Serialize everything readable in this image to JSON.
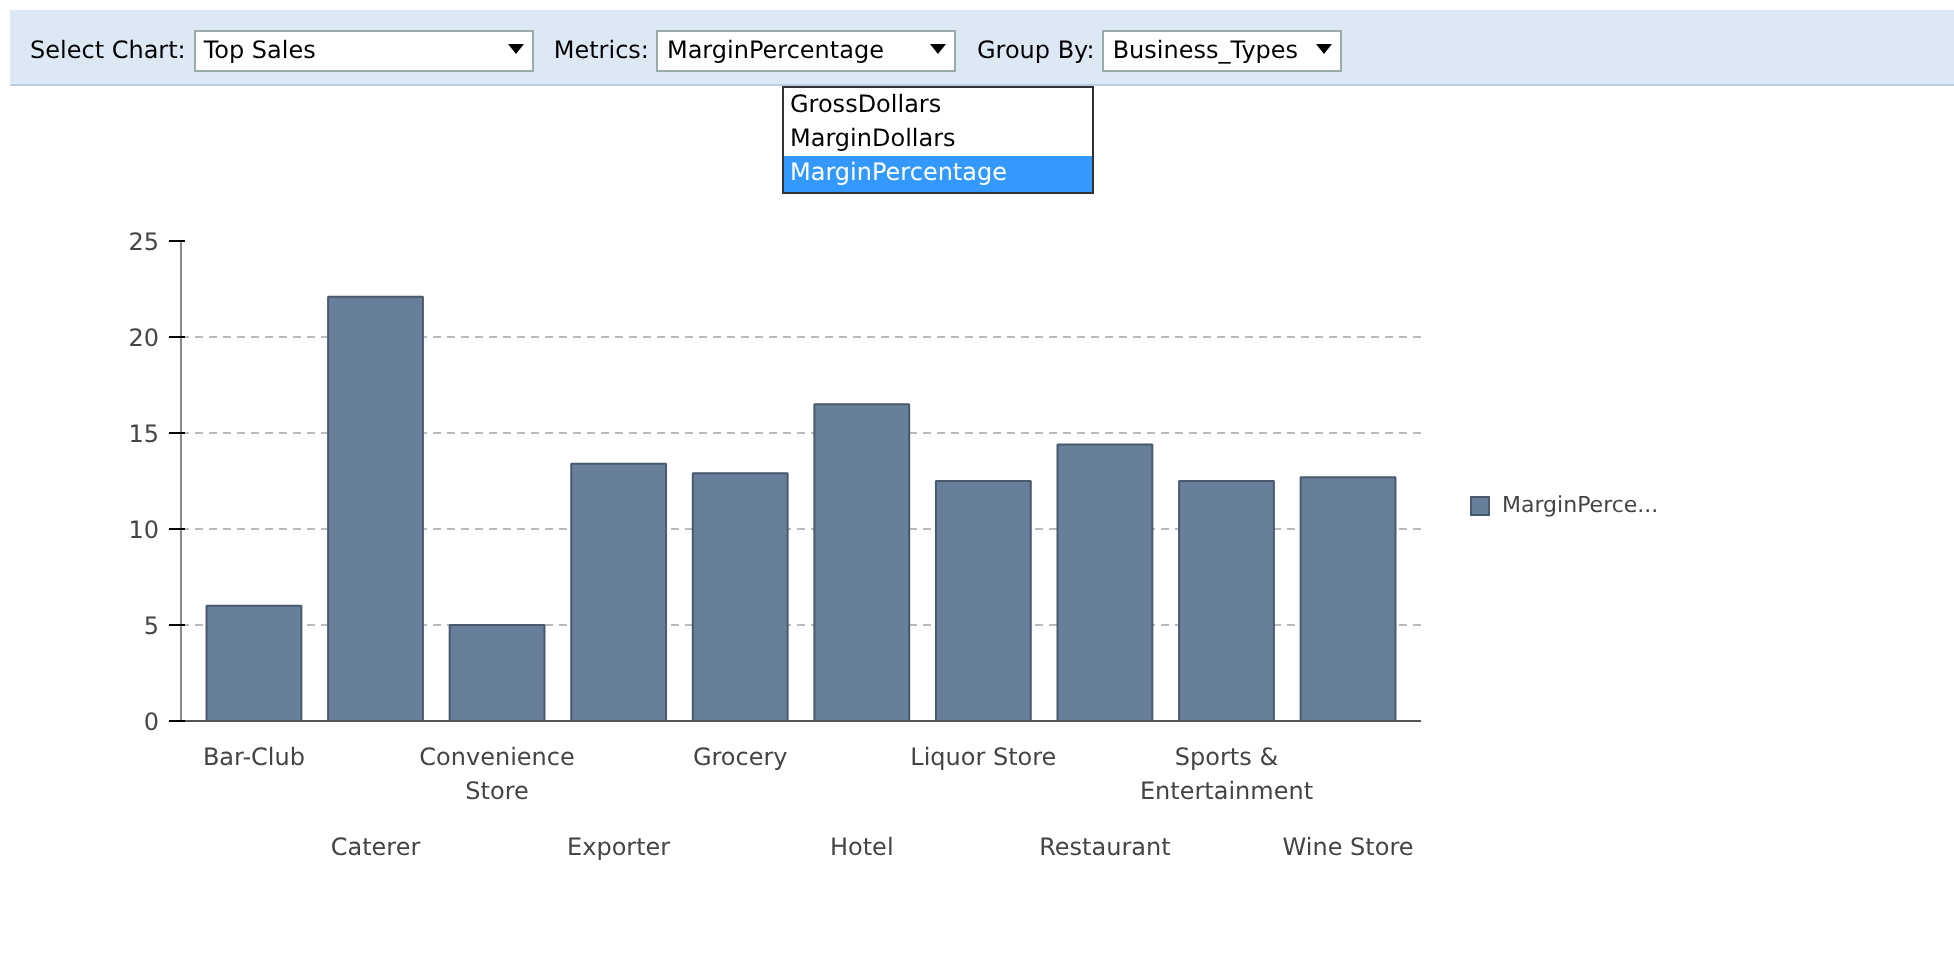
{
  "chart_data": {
    "type": "bar",
    "categories": [
      "Bar-Club",
      "Caterer",
      "Convenience Store",
      "Exporter",
      "Grocery",
      "Hotel",
      "Liquor Store",
      "Restaurant",
      "Sports & Entertainment",
      "Wine Store"
    ],
    "series": [
      {
        "name": "MarginPerce...",
        "color": "#687f9b",
        "values": [
          6.0,
          22.1,
          5.0,
          13.4,
          12.9,
          16.5,
          12.5,
          14.4,
          12.5,
          12.7
        ]
      }
    ],
    "ylim": [
      0,
      25
    ],
    "yticks": [
      0,
      5,
      10,
      15,
      20,
      25
    ],
    "grid": "y",
    "legend": "right",
    "annotations": [
      "Select Chart:",
      "Top Sales",
      "Metrics:",
      "MarginPercentage",
      "Group By:",
      "Business_Types",
      "GrossDollars",
      "MarginDollars",
      "MarginPercentage"
    ]
  }
}
